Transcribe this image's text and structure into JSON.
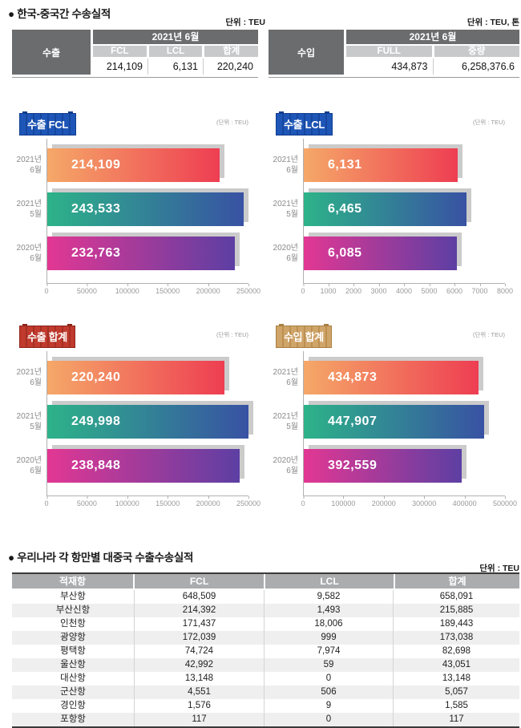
{
  "page_title": "● 한국-중국간 수송실적",
  "summary": {
    "export": {
      "unit": "단위 : TEU",
      "row_label": "수출",
      "period": "2021년 6월",
      "columns": [
        "FCL",
        "LCL",
        "합계"
      ],
      "values": [
        "214,109",
        "6,131",
        "220,240"
      ]
    },
    "import": {
      "unit": "단위 : TEU, 톤",
      "row_label": "수입",
      "period": "2021년 6월",
      "columns": [
        "FULL",
        "중량"
      ],
      "values": [
        "434,873",
        "6,258,376.6"
      ]
    }
  },
  "chart_style": {
    "bar_gradients": [
      [
        "#f5a868",
        "#ee3e52"
      ],
      [
        "#2db389",
        "#3852a3"
      ],
      [
        "#e23793",
        "#5d3fa3"
      ]
    ],
    "shadow_color": "#cbcbcb",
    "axis_color": "#b0b0b0",
    "badges": {
      "blue": {
        "base": "#1e56b8",
        "rib": "#16479e",
        "edge": "#0f3c8e"
      },
      "red": {
        "base": "#c03a2d",
        "rib": "#a52f24",
        "edge": "#8f261c"
      },
      "tan": {
        "base": "#cfa469",
        "rib": "#bd8f50",
        "edge": "#a97f42"
      }
    }
  },
  "chart_data": [
    {
      "type": "bar",
      "orientation": "horizontal",
      "title": "수출 FCL",
      "badge": "blue",
      "unit_label": "(단위 : TEU)",
      "categories": [
        "2021년 6월",
        "2021년 5월",
        "2020년 6월"
      ],
      "category_lines": [
        [
          "2021년",
          "6월"
        ],
        [
          "2021년",
          "5월"
        ],
        [
          "2020년",
          "6월"
        ]
      ],
      "values": [
        214109,
        243533,
        232763
      ],
      "value_labels": [
        "214,109",
        "243,533",
        "232,763"
      ],
      "xlim": [
        0,
        250000
      ],
      "ticks": [
        0,
        50000,
        100000,
        150000,
        200000,
        250000
      ]
    },
    {
      "type": "bar",
      "orientation": "horizontal",
      "title": "수출 LCL",
      "badge": "blue",
      "unit_label": "(단위 : TEU)",
      "categories": [
        "2021년 6월",
        "2021년 5월",
        "2020년 6월"
      ],
      "category_lines": [
        [
          "2021년",
          "6월"
        ],
        [
          "2021년",
          "5월"
        ],
        [
          "2020년",
          "6월"
        ]
      ],
      "values": [
        6131,
        6465,
        6085
      ],
      "value_labels": [
        "6,131",
        "6,465",
        "6,085"
      ],
      "xlim": [
        0,
        8000
      ],
      "ticks": [
        0,
        1000,
        2000,
        3000,
        4000,
        5000,
        6000,
        7000,
        8000
      ]
    },
    {
      "type": "bar",
      "orientation": "horizontal",
      "title": "수출 합계",
      "badge": "red",
      "unit_label": "(단위 : TEU)",
      "categories": [
        "2021년 6월",
        "2021년 5월",
        "2020년 6월"
      ],
      "category_lines": [
        [
          "2021년",
          "6월"
        ],
        [
          "2021년",
          "5월"
        ],
        [
          "2020년",
          "6월"
        ]
      ],
      "values": [
        220240,
        249998,
        238848
      ],
      "value_labels": [
        "220,240",
        "249,998",
        "238,848"
      ],
      "xlim": [
        0,
        250000
      ],
      "ticks": [
        0,
        50000,
        100000,
        150000,
        200000,
        250000
      ]
    },
    {
      "type": "bar",
      "orientation": "horizontal",
      "title": "수입 합계",
      "badge": "tan",
      "unit_label": "(단위 : TEU)",
      "categories": [
        "2021년 6월",
        "2021년 5월",
        "2020년 6월"
      ],
      "category_lines": [
        [
          "2021년",
          "6월"
        ],
        [
          "2021년",
          "5월"
        ],
        [
          "2020년",
          "6월"
        ]
      ],
      "values": [
        434873,
        447907,
        392559
      ],
      "value_labels": [
        "434,873",
        "447,907",
        "392,559"
      ],
      "xlim": [
        0,
        500000
      ],
      "ticks": [
        0,
        100000,
        200000,
        300000,
        400000,
        500000
      ]
    }
  ],
  "ports": {
    "title": "● 우리나라 각 항만별 대중국 수출수송실적",
    "unit": "단위 : TEU",
    "columns": [
      "적재항",
      "FCL",
      "LCL",
      "합계"
    ],
    "rows": [
      [
        "부산항",
        "648,509",
        "9,582",
        "658,091"
      ],
      [
        "부산신항",
        "214,392",
        "1,493",
        "215,885"
      ],
      [
        "인천항",
        "171,437",
        "18,006",
        "189,443"
      ],
      [
        "광양항",
        "172,039",
        "999",
        "173,038"
      ],
      [
        "평택항",
        "74,724",
        "7,974",
        "82,698"
      ],
      [
        "울산항",
        "42,992",
        "59",
        "43,051"
      ],
      [
        "대산항",
        "13,148",
        "0",
        "13,148"
      ],
      [
        "군산항",
        "4,551",
        "506",
        "5,057"
      ],
      [
        "경인항",
        "1,576",
        "9",
        "1,585"
      ],
      [
        "포항항",
        "117",
        "0",
        "117"
      ]
    ]
  }
}
